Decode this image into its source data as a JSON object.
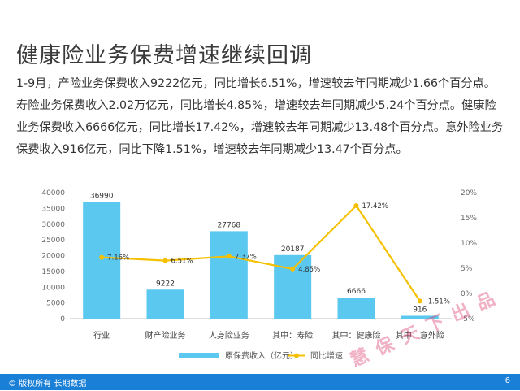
{
  "page": {
    "title": "健康险业务保费增速继续回调",
    "paragraph": "1-9月，产险业务保费收入9222亿元，同比增长6.51%，增速较去年同期减少1.66个百分点。寿险业务保费收入2.02万亿元，同比增长4.85%，增速较去年同期减少5.24个百分点。健康险业务保费收入6666亿元，同比增长17.42%，增速较去年同期减少13.48个百分点。意外险业务保费收入916亿元，同比下降1.51%，增速较去年同期减少13.47个百分点。"
  },
  "footer": {
    "copyright": "© 版权所有 长期数据",
    "page_number": "6"
  },
  "watermark": {
    "text": "慧保天下出品"
  },
  "chart_data": {
    "type": "bar",
    "categories": [
      "行业",
      "财产险业务",
      "人身险业务",
      "其中：寿险",
      "其中：健康险",
      "其中：意外险"
    ],
    "series": [
      {
        "name": "原保费收入（亿元）",
        "type": "bar",
        "axis": "left",
        "color": "#5bc8f0",
        "values": [
          36990,
          9222,
          27768,
          20187,
          6666,
          916
        ],
        "labels": [
          "36990",
          "9222",
          "27768",
          "20187",
          "6666",
          "916"
        ]
      },
      {
        "name": "同比增速",
        "type": "line",
        "axis": "right",
        "color": "#f5c000",
        "values": [
          7.16,
          6.51,
          7.37,
          4.85,
          17.42,
          -1.51
        ],
        "labels": [
          "7.16%",
          "6.51%",
          "7.37%",
          "4.85%",
          "17.42%",
          "-1.51%"
        ]
      }
    ],
    "y_left": {
      "min": 0,
      "max": 40000,
      "ticks": [
        "0",
        "5000",
        "10000",
        "15000",
        "20000",
        "25000",
        "30000",
        "35000",
        "40000"
      ]
    },
    "y_right": {
      "min": -5,
      "max": 20,
      "ticks": [
        "-5%",
        "0%",
        "5%",
        "10%",
        "15%",
        "20%"
      ]
    },
    "legend_position": "bottom",
    "grid": false
  }
}
